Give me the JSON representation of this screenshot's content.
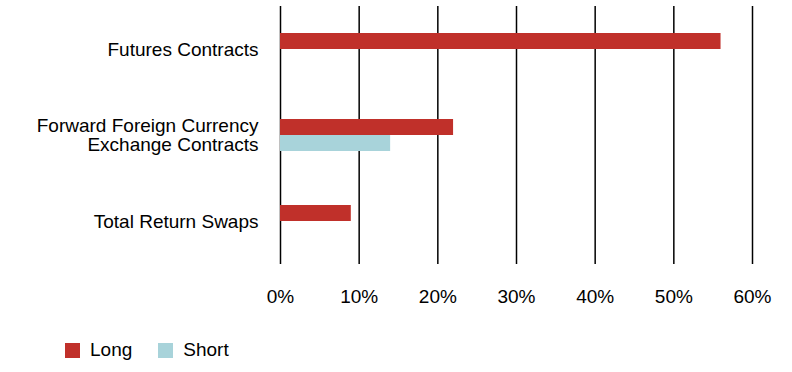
{
  "chart_data": {
    "type": "bar",
    "orientation": "horizontal",
    "categories": [
      "Futures Contracts",
      "Forward Foreign Currency\nExchange Contracts",
      "Total Return Swaps"
    ],
    "series": [
      {
        "name": "Long",
        "color": "#c0302a",
        "values": [
          56,
          22,
          9
        ]
      },
      {
        "name": "Short",
        "color": "#a8d3da",
        "values": [
          null,
          14,
          null
        ]
      }
    ],
    "xlim": [
      0,
      60
    ],
    "xticks": [
      {
        "value": 0,
        "label": "0%"
      },
      {
        "value": 10,
        "label": "10%"
      },
      {
        "value": 20,
        "label": "20%"
      },
      {
        "value": 30,
        "label": "30%"
      },
      {
        "value": 40,
        "label": "40%"
      },
      {
        "value": 50,
        "label": "50%"
      },
      {
        "value": 60,
        "label": "60%"
      }
    ],
    "grid": true,
    "legend": "bottom-left"
  }
}
